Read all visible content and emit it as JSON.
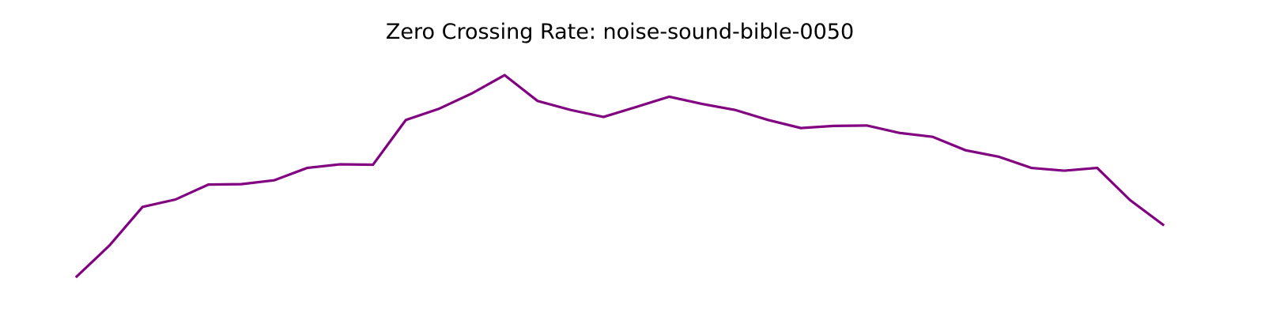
{
  "chart_data": {
    "type": "line",
    "title": "Zero Crossing Rate: noise-sound-bible-0050",
    "xlabel": "",
    "ylabel": "",
    "axes_visible": false,
    "grid": false,
    "legend": "none",
    "series": [
      {
        "color": "#800080",
        "x": [
          0,
          1,
          2,
          3,
          4,
          5,
          6,
          7,
          8,
          9,
          10,
          11,
          12,
          13,
          14,
          15,
          16,
          17,
          18,
          19,
          20,
          21,
          22,
          23,
          24,
          25,
          26,
          27,
          28,
          29,
          30,
          31,
          32,
          33
        ],
        "values": [
          0.0,
          0.146,
          0.326,
          0.361,
          0.431,
          0.433,
          0.451,
          0.509,
          0.526,
          0.524,
          0.734,
          0.786,
          0.858,
          0.944,
          0.823,
          0.781,
          0.748,
          0.795,
          0.843,
          0.809,
          0.781,
          0.734,
          0.696,
          0.706,
          0.708,
          0.673,
          0.655,
          0.592,
          0.562,
          0.509,
          0.496,
          0.509,
          0.358,
          0.243
        ]
      }
    ],
    "xlim": [
      0,
      33
    ],
    "ylim": [
      0,
      1
    ]
  }
}
